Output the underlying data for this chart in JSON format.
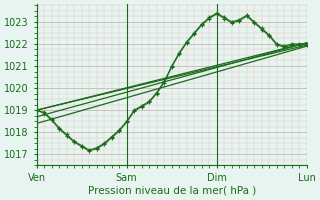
{
  "background_color": "#e8f4f0",
  "grid_major_color": "#c8a8a8",
  "grid_minor_color": "#dcc0c0",
  "line_color": "#1a6b1a",
  "xlabel": "Pression niveau de la mer( hPa )",
  "yticks": [
    1017,
    1018,
    1019,
    1020,
    1021,
    1022,
    1023
  ],
  "ylim": [
    1016.5,
    1023.8
  ],
  "xlim": [
    0,
    72
  ],
  "xtick_positions": [
    0,
    24,
    48,
    72
  ],
  "xtick_labels": [
    "Ven",
    "Sam",
    "Dim",
    "Lun"
  ],
  "trend_lines": [
    [
      0,
      1019.0,
      72,
      1022.05
    ],
    [
      0,
      1019.0,
      72,
      1021.95
    ],
    [
      0,
      1018.7,
      72,
      1022.05
    ],
    [
      0,
      1018.4,
      72,
      1021.9
    ]
  ],
  "x_main": [
    0,
    2,
    4,
    6,
    8,
    10,
    12,
    14,
    16,
    18,
    20,
    22,
    24,
    26,
    28,
    30,
    32,
    34,
    36,
    38,
    40,
    42,
    44,
    46,
    48,
    50,
    52,
    54,
    56,
    58,
    60,
    62,
    64,
    66,
    68,
    70,
    72
  ],
  "y_main": [
    1019.0,
    1018.9,
    1018.6,
    1018.2,
    1017.9,
    1017.6,
    1017.4,
    1017.2,
    1017.3,
    1017.5,
    1017.8,
    1018.1,
    1018.5,
    1019.0,
    1019.2,
    1019.4,
    1019.8,
    1020.3,
    1021.0,
    1021.6,
    1022.1,
    1022.5,
    1022.9,
    1023.2,
    1023.4,
    1023.2,
    1023.0,
    1023.1,
    1023.3,
    1023.0,
    1022.7,
    1022.4,
    1022.0,
    1021.9,
    1022.0,
    1022.0,
    1022.0
  ],
  "y_main2": [
    1019.0,
    1018.85,
    1018.55,
    1018.15,
    1017.85,
    1017.55,
    1017.35,
    1017.15,
    1017.25,
    1017.45,
    1017.75,
    1018.05,
    1018.45,
    1018.95,
    1019.15,
    1019.35,
    1019.75,
    1020.25,
    1020.95,
    1021.55,
    1022.05,
    1022.45,
    1022.85,
    1023.15,
    1023.35,
    1023.15,
    1022.95,
    1023.05,
    1023.25,
    1022.95,
    1022.65,
    1022.35,
    1021.95,
    1021.85,
    1021.95,
    1021.95,
    1021.95
  ]
}
